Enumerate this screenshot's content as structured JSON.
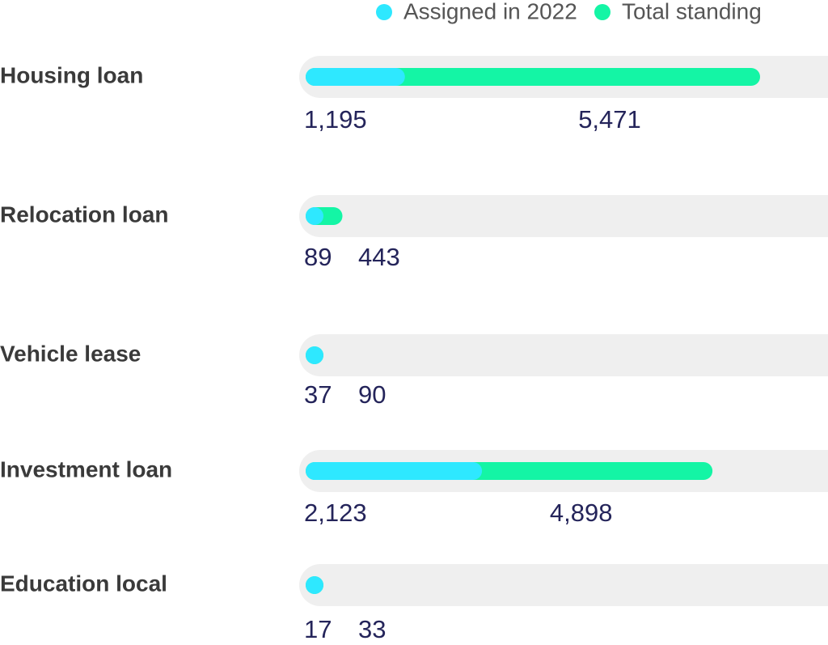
{
  "chart_data": {
    "type": "bar",
    "orientation": "horizontal",
    "overlap": true,
    "categories": [
      "Housing loan",
      "Relocation loan",
      "Vehicle lease",
      "Investment loan",
      "Education local"
    ],
    "series": [
      {
        "name": "Assigned in 2022",
        "color": "#2ee8ff",
        "values": [
          1195,
          89,
          37,
          2123,
          17
        ],
        "value_labels": [
          "1,195",
          "89",
          "37",
          "2,123",
          "17"
        ]
      },
      {
        "name": "Total standing",
        "color": "#14f5a5",
        "values": [
          5471,
          443,
          90,
          4898,
          33
        ],
        "value_labels": [
          "5,471",
          "443",
          "90",
          "4,898",
          "33"
        ]
      }
    ]
  }
}
